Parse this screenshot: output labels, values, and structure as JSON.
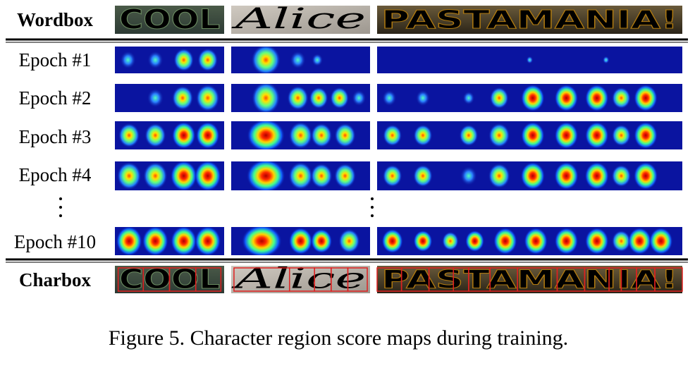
{
  "rows": [
    {
      "label": "Wordbox"
    },
    {
      "label": "Epoch #1"
    },
    {
      "label": "Epoch #2"
    },
    {
      "label": "Epoch #3"
    },
    {
      "label": "Epoch #4"
    },
    {
      "label": "Epoch #10"
    },
    {
      "label": "Charbox"
    }
  ],
  "words": [
    "COOL",
    "Alice",
    "PASTAMANIA!"
  ],
  "caption": "Figure 5. Character region score maps during training."
}
